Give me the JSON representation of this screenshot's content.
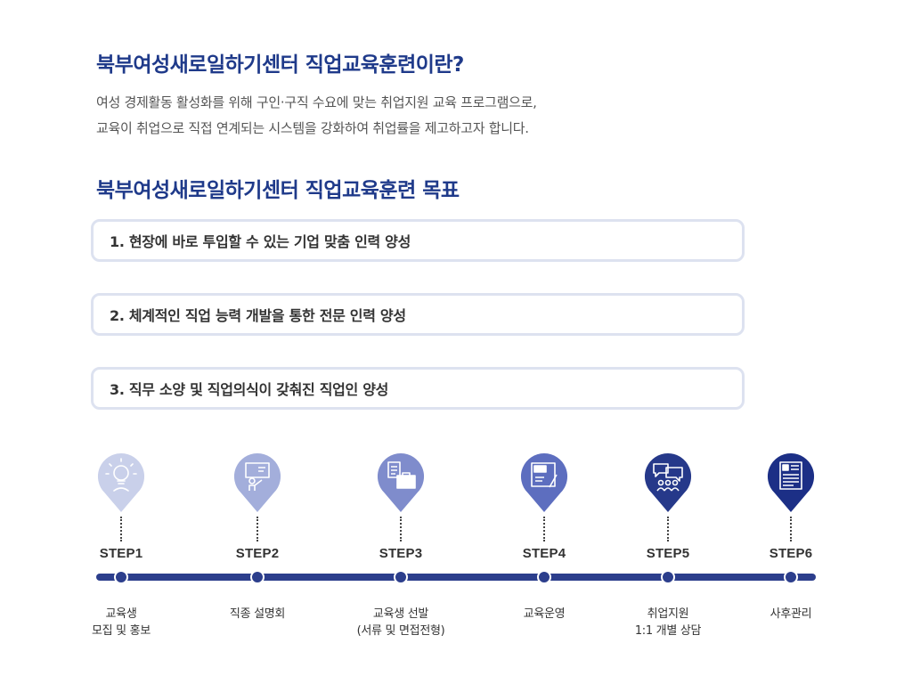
{
  "heading1": "북부여성새로일하기센터 직업교육훈련이란?",
  "description": {
    "line1": "여성 경제활동 활성화를 위해 구인·구직 수요에 맞는 취업지원 교육 프로그램으로,",
    "line2": "교육이 취업으로 직접 연계되는 시스템을 강화하여 취업률을 제고하고자 합니다."
  },
  "heading2": "북부여성새로일하기센터 직업교육훈련 목표",
  "goals": [
    {
      "text": "1. 현장에 바로 투입할 수 있는 기업 맞춤 인력 양성"
    },
    {
      "text": "2. 체계적인 직업 능력 개발을 통한 전문 인력 양성"
    },
    {
      "text": "3. 직무 소양 및 직업의식이 갖춰진 직업인 양성"
    }
  ],
  "steps": [
    {
      "label": "STEP1",
      "desc1": "교육생",
      "desc2": "모집 및 홍보",
      "icon": "lightbulb-hand-icon",
      "color": "#c9d0ea"
    },
    {
      "label": "STEP2",
      "desc1": "직종 설명회",
      "desc2": "",
      "icon": "presentation-icon",
      "color": "#a3aedb"
    },
    {
      "label": "STEP3",
      "desc1": "교육생 선발",
      "desc2": "(서류 및 면접전형)",
      "icon": "briefcase-resume-icon",
      "color": "#7f8ccc"
    },
    {
      "label": "STEP4",
      "desc1": "교육운영",
      "desc2": "",
      "icon": "job-board-icon",
      "color": "#5d6ebf"
    },
    {
      "label": "STEP5",
      "desc1": "취업지원",
      "desc2": "1:1 개별 상담",
      "icon": "consulting-people-icon",
      "color": "#26398a"
    },
    {
      "label": "STEP6",
      "desc1": "사후관리",
      "desc2": "",
      "icon": "document-report-icon",
      "color": "#1c2f86"
    }
  ],
  "colors": {
    "title": "#1f3a8a",
    "timeline": "#2c3e8c",
    "goal_border": "#dde2f0"
  }
}
